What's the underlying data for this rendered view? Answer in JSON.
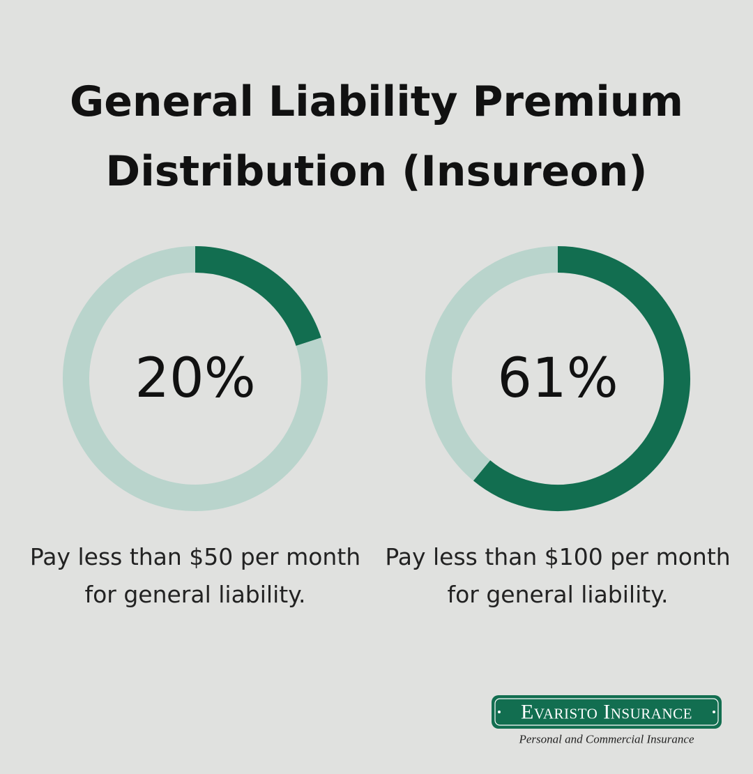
{
  "title": "General Liability Premium Distribution (Insureon)",
  "chart_data": [
    {
      "type": "donut",
      "values": [
        20,
        80
      ],
      "value_labels": [
        "20%",
        null
      ],
      "colors": [
        "#126e50",
        "#b9d4cc"
      ],
      "caption": "Pay less than $50 per month for general liability."
    },
    {
      "type": "donut",
      "values": [
        61,
        39
      ],
      "value_labels": [
        "61%",
        null
      ],
      "colors": [
        "#126e50",
        "#b9d4cc"
      ],
      "caption": "Pay less than $100 per month for general liability."
    }
  ],
  "logo": {
    "name": "Evaristo Insurance",
    "tagline": "Personal and Commercial Insurance"
  }
}
